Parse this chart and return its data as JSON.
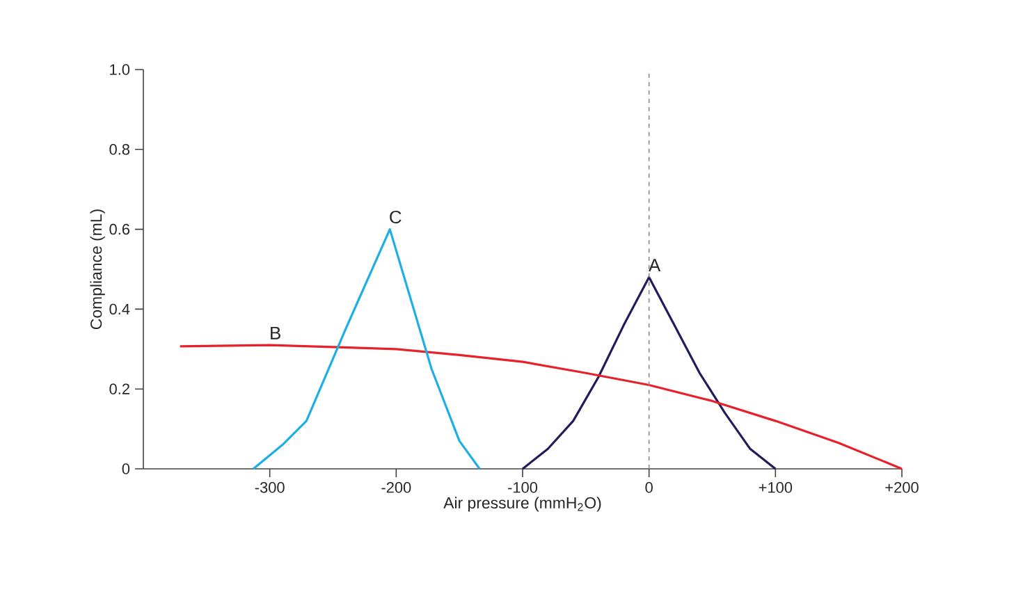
{
  "chart_data": {
    "type": "line",
    "xlabel": "Air pressure (mmH$_{2}$O)",
    "ylabel": "Compliance (mL)",
    "xlim": [
      -400,
      200
    ],
    "ylim": [
      0,
      1.0
    ],
    "xticks": [
      -300,
      -200,
      -100,
      0,
      {
        "value": 100,
        "label": "+100"
      },
      {
        "value": 200,
        "label": "+200"
      }
    ],
    "yticks": [
      0,
      {
        "value": 0.2,
        "label": "0.2"
      },
      {
        "value": 0.4,
        "label": "0.4"
      },
      {
        "value": 0.6,
        "label": "0.6"
      },
      {
        "value": 0.8,
        "label": "0.8"
      },
      {
        "value": 1.0,
        "label": "1.0"
      }
    ],
    "grid": false,
    "legend": false,
    "marker": "none",
    "line_style": "solid",
    "series": [
      {
        "name": "A",
        "color": "#1f1d5b",
        "x": [
          -100,
          -80,
          -60,
          -40,
          -20,
          0,
          20,
          40,
          60,
          80,
          100
        ],
        "values": [
          0,
          0.05,
          0.12,
          0.23,
          0.36,
          0.48,
          0.36,
          0.24,
          0.14,
          0.05,
          0
        ]
      },
      {
        "name": "B",
        "color": "#e8202a",
        "x": [
          -371,
          -300,
          -200,
          -150,
          -100,
          -50,
          0,
          50,
          100,
          150,
          200
        ],
        "values": [
          0.307,
          0.31,
          0.3,
          0.285,
          0.268,
          0.24,
          0.21,
          0.17,
          0.12,
          0.065,
          0
        ]
      },
      {
        "name": "C",
        "color": "#1eaee6",
        "x": [
          -313,
          -290,
          -271,
          -240,
          -205,
          -172,
          -150,
          -134
        ],
        "values": [
          0,
          0.06,
          0.12,
          0.35,
          0.6,
          0.25,
          0.07,
          0
        ]
      }
    ],
    "ref_lines": [
      {
        "axis": "x",
        "value": 0,
        "color": "#888888",
        "line_style": "dashed"
      }
    ]
  }
}
